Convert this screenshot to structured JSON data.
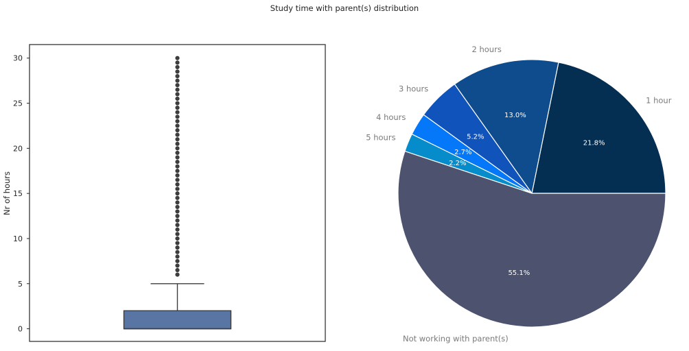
{
  "figure": {
    "title": "Study time with parent(s) distribution"
  },
  "chart_data": [
    {
      "type": "box",
      "title": "",
      "xlabel": "",
      "ylabel": "Nr of hours",
      "ylim": [
        -1.4,
        31.5
      ],
      "yticks": [
        0,
        5,
        10,
        15,
        20,
        25,
        30
      ],
      "grid": false,
      "box": {
        "q1": 0,
        "median": 0,
        "q3": 2,
        "whisker_low": 0,
        "whisker_high": 5,
        "color": "#5975a4"
      },
      "outliers": [
        6,
        6.5,
        7,
        7.5,
        8,
        8.5,
        9,
        9.5,
        10,
        10.5,
        11,
        11.5,
        12,
        12.5,
        13,
        13.5,
        14,
        14.5,
        15,
        15.5,
        16,
        16.5,
        17,
        17.5,
        18,
        18.5,
        19,
        19.5,
        20,
        20.5,
        21,
        21.5,
        22,
        22.5,
        23,
        23.5,
        24,
        24.5,
        25,
        25.5,
        26,
        26.5,
        27,
        27.5,
        28,
        28.5,
        29,
        29.5,
        30
      ]
    },
    {
      "type": "pie",
      "title": "",
      "start_angle_deg": 0,
      "direction": "counterclockwise",
      "slices": [
        {
          "label": "1 hour",
          "value": 21.8,
          "pct_label": "21.8%",
          "color": "#042e52"
        },
        {
          "label": "2 hours",
          "value": 13.0,
          "pct_label": "13.0%",
          "color": "#0e4c8e"
        },
        {
          "label": "3 hours",
          "value": 5.2,
          "pct_label": "5.2%",
          "color": "#1053bb"
        },
        {
          "label": "4 hours",
          "value": 2.7,
          "pct_label": "2.7%",
          "color": "#0478f8"
        },
        {
          "label": "5 hours",
          "value": 2.2,
          "pct_label": "2.2%",
          "color": "#068ccb"
        },
        {
          "label": "Not working with parent(s)",
          "value": 55.1,
          "pct_label": "55.1%",
          "color": "#4d536f"
        }
      ]
    }
  ]
}
